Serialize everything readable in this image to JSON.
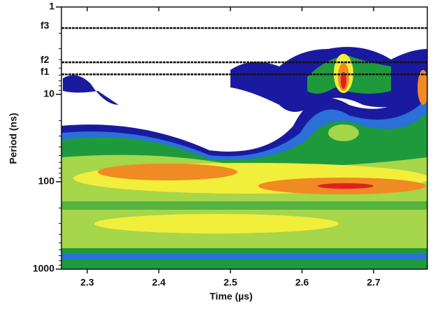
{
  "chart_data": {
    "type": "contour",
    "x_label": "Time (µs)",
    "y_label": "Period (ns)",
    "xlim": [
      2.264,
      2.775
    ],
    "xticks": [
      2.3,
      2.4,
      2.5,
      2.6,
      2.7
    ],
    "ylim": [
      1,
      1000
    ],
    "yticks": [
      1,
      10,
      100,
      1000
    ],
    "y_scale": "log",
    "y_inverted": true,
    "annotations": [
      {
        "label": "f3",
        "value": 1.74
      },
      {
        "label": "f2",
        "value": 4.3
      },
      {
        "label": "f1",
        "value": 5.9
      }
    ]
  }
}
